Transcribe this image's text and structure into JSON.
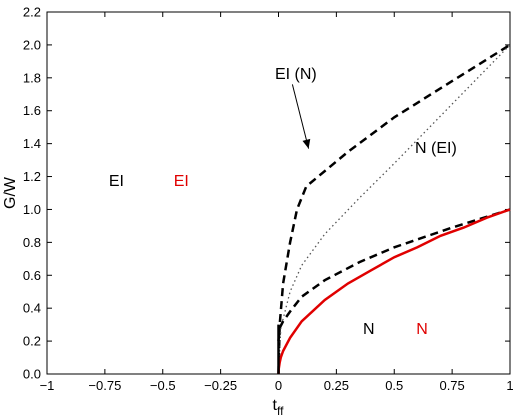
{
  "chart_data": {
    "type": "line",
    "title": "",
    "xlabel_main": "t",
    "xlabel_sub": "ff",
    "ylabel": "G/W",
    "xlim": [
      -1,
      1
    ],
    "ylim": [
      0,
      2.2
    ],
    "grid": false,
    "x_ticks": [
      -1,
      -0.75,
      -0.5,
      -0.25,
      0,
      0.25,
      0.5,
      0.75,
      1
    ],
    "x_tick_labels": [
      "−1",
      "−0.75",
      "−0.5",
      "−0.25",
      "0",
      "0.25",
      "0.5",
      "0.75",
      "1"
    ],
    "y_ticks": [
      0,
      0.2,
      0.4,
      0.6,
      0.8,
      1.0,
      1.2,
      1.4,
      1.6,
      1.8,
      2.0,
      2.2
    ],
    "y_tick_labels": [
      "0.0",
      "0.2",
      "0.4",
      "0.6",
      "0.8",
      "1.0",
      "1.2",
      "1.4",
      "1.6",
      "1.8",
      "2.0",
      "2.2"
    ],
    "series": [
      {
        "style": "dashed",
        "color": "#000000",
        "points": [
          [
            0,
            0
          ],
          [
            0.005,
            0.3
          ],
          [
            0.02,
            0.55
          ],
          [
            0.05,
            0.8
          ],
          [
            0.08,
            1.0
          ],
          [
            0.12,
            1.14
          ],
          [
            0.3,
            1.35
          ],
          [
            0.5,
            1.56
          ],
          [
            0.75,
            1.78
          ],
          [
            1.0,
            2.0
          ]
        ]
      },
      {
        "style": "dotted",
        "color": "#555555",
        "points": [
          [
            0,
            0
          ],
          [
            0.01,
            0.28
          ],
          [
            0.05,
            0.5
          ],
          [
            0.1,
            0.66
          ],
          [
            0.2,
            0.85
          ],
          [
            0.35,
            1.07
          ],
          [
            0.5,
            1.28
          ],
          [
            0.75,
            1.64
          ],
          [
            1.0,
            2.0
          ]
        ]
      },
      {
        "style": "dashed",
        "color": "#000000",
        "points": [
          [
            0,
            0.2
          ],
          [
            0.005,
            0.28
          ],
          [
            0.02,
            0.32
          ],
          [
            0.05,
            0.38
          ],
          [
            0.1,
            0.47
          ],
          [
            0.2,
            0.57
          ],
          [
            0.35,
            0.68
          ],
          [
            0.5,
            0.77
          ],
          [
            0.75,
            0.89
          ],
          [
            1.0,
            1.0
          ]
        ]
      },
      {
        "style": "solid",
        "color": "#e00000",
        "points": [
          [
            0,
            0.0
          ],
          [
            0.001,
            0.03
          ],
          [
            0.005,
            0.07
          ],
          [
            0.01,
            0.1
          ],
          [
            0.02,
            0.14
          ],
          [
            0.05,
            0.22
          ],
          [
            0.1,
            0.32
          ],
          [
            0.2,
            0.45
          ],
          [
            0.3,
            0.55
          ],
          [
            0.4,
            0.63
          ],
          [
            0.5,
            0.71
          ],
          [
            0.6,
            0.77
          ],
          [
            0.7,
            0.84
          ],
          [
            0.8,
            0.89
          ],
          [
            0.9,
            0.95
          ],
          [
            1.0,
            1.0
          ]
        ]
      },
      {
        "style": "solid",
        "color": "#000000",
        "points": [
          [
            0,
            0.0
          ],
          [
            0,
            0.3
          ]
        ]
      }
    ],
    "annotations": [
      {
        "text": "EI",
        "x": -0.7,
        "y": 1.18,
        "color": "#000000"
      },
      {
        "text": "EI",
        "x": -0.42,
        "y": 1.18,
        "color": "#e00000"
      },
      {
        "text": "EI (N)",
        "x": 0.075,
        "y": 1.83,
        "color": "#000000"
      },
      {
        "text": "N (EI)",
        "x": 0.68,
        "y": 1.38,
        "color": "#000000"
      },
      {
        "text": "N",
        "x": 0.39,
        "y": 0.28,
        "color": "#000000"
      },
      {
        "text": "N",
        "x": 0.62,
        "y": 0.28,
        "color": "#e00000"
      }
    ],
    "arrows": [
      {
        "from": [
          0.06,
          1.76
        ],
        "to": [
          0.13,
          1.37
        ],
        "color": "#000000"
      }
    ]
  }
}
